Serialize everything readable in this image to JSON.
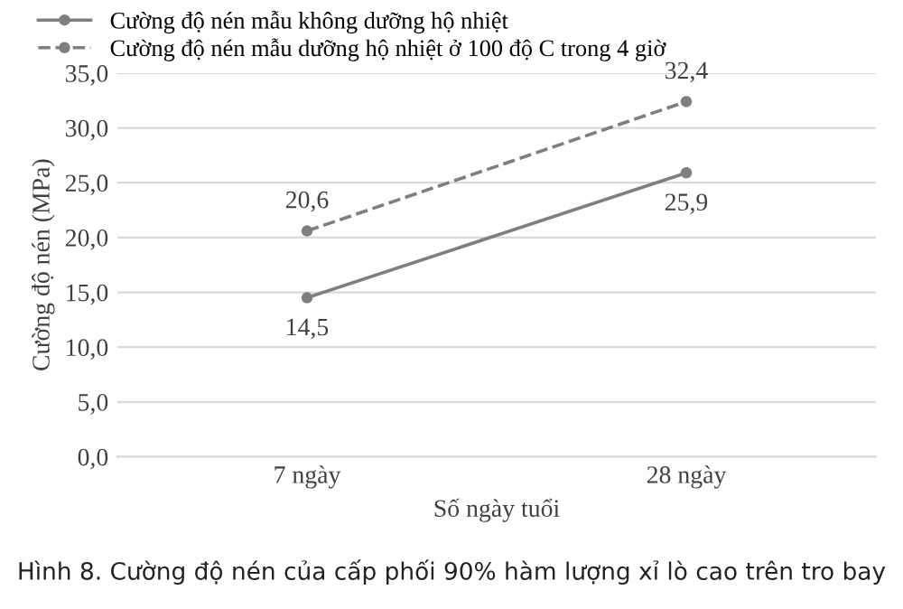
{
  "chart_data": {
    "type": "line",
    "xlabel": "Số ngày tuổi",
    "ylabel": "Cường độ nén (MPa)",
    "categories": [
      "7 ngày",
      "28 ngày"
    ],
    "series": [
      {
        "name": "Cường độ nén mẫu không dưỡng hộ nhiệt",
        "color": "#7f7f7f",
        "values": [
          14.5,
          25.9
        ],
        "value_labels": [
          "14,5",
          "25,9"
        ],
        "line_style": "solid"
      },
      {
        "name": "Cường độ nén mẫu dưỡng hộ nhiệt ở 100 độ C trong 4 giờ",
        "color": "#7f7f7f",
        "values": [
          20.6,
          32.4
        ],
        "value_labels": [
          "20,6",
          "32,4"
        ],
        "line_style": "dashed"
      }
    ],
    "ylim": [
      0,
      35
    ],
    "yticks": [
      {
        "value": 0,
        "label": "0,0"
      },
      {
        "value": 5,
        "label": "5,0"
      },
      {
        "value": 10,
        "label": "10,0"
      },
      {
        "value": 15,
        "label": "15,0"
      },
      {
        "value": 20,
        "label": "20,0"
      },
      {
        "value": 25,
        "label": "25,0"
      },
      {
        "value": 30,
        "label": "30,0"
      },
      {
        "value": 35,
        "label": "35,0"
      }
    ],
    "grid": "y",
    "legend": "top left",
    "marker": "circle",
    "annotations": [
      "Hình 8. Cường độ nén của cấp phối 90% hàm lượng xỉ lò cao trên tro bay"
    ]
  }
}
